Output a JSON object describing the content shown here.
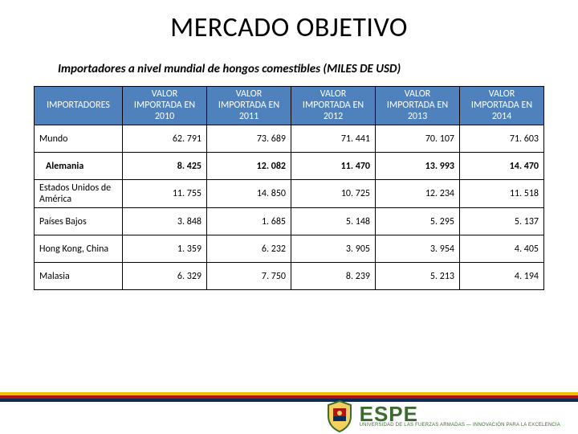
{
  "title": "MERCADO OBJETIVO",
  "subtitle": "Importadores a nivel mundial de hongos comestibles (MILES DE USD)",
  "table": {
    "columns": [
      "IMPORTADORES",
      "VALOR IMPORTADA EN 2010",
      "VALOR IMPORTADA EN 2011",
      "VALOR IMPORTADA EN 2012",
      "VALOR IMPORTADA EN 2013",
      "VALOR IMPORTADA EN 2014"
    ],
    "rows": [
      {
        "label": "Mundo",
        "values": [
          "62. 791",
          "73. 689",
          "71. 441",
          "70. 107",
          "71. 603"
        ],
        "highlight": false
      },
      {
        "label": "Alemania",
        "values": [
          "8. 425",
          "12. 082",
          "11. 470",
          "13. 993",
          "14. 470"
        ],
        "highlight": true
      },
      {
        "label": "Estados Unidos de América",
        "values": [
          "11. 755",
          "14. 850",
          "10. 725",
          "12. 234",
          "11. 518"
        ],
        "highlight": false
      },
      {
        "label": "Países Bajos",
        "values": [
          "3. 848",
          "1. 685",
          "5. 148",
          "5. 295",
          "5. 137"
        ],
        "highlight": false
      },
      {
        "label": "Hong Kong, China",
        "values": [
          "1. 359",
          "6. 232",
          "3. 905",
          "3. 954",
          "4. 405"
        ],
        "highlight": false
      },
      {
        "label": "Malasia",
        "values": [
          "6. 329",
          "7. 750",
          "8. 239",
          "5. 213",
          "4. 194"
        ],
        "highlight": false
      }
    ],
    "header_bg": "#4f81bd",
    "header_fg": "#ffffff",
    "border_color": "#000000",
    "font_size_cells": 12
  },
  "footer": {
    "stripe_colors": [
      "#f0c000",
      "#b01414",
      "#0a2a5a"
    ],
    "logo_text": "ESPE",
    "logo_sub": "UNIVERSIDAD DE LAS FUERZAS ARMADAS — INNOVACIÓN PARA LA EXCELENCIA",
    "logo_color": "#3b6b2e"
  }
}
